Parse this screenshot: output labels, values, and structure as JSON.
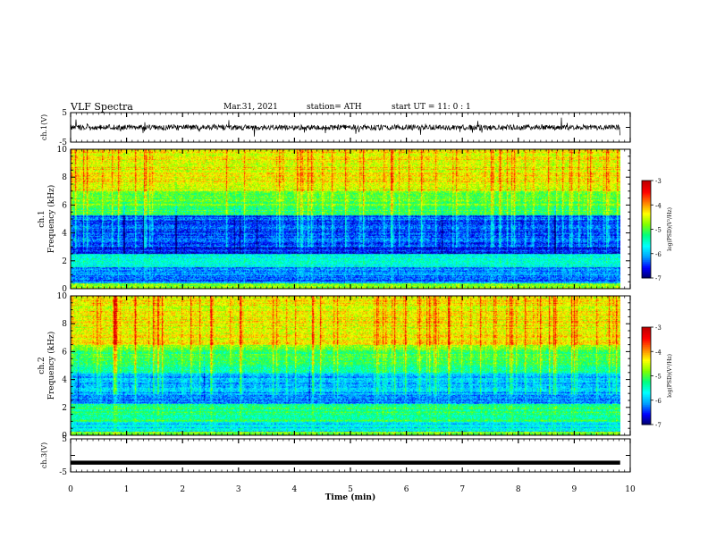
{
  "header": {
    "title": "VLF Spectra",
    "date": "Mar.31, 2021",
    "station": "station= ATH",
    "start": "start  UT =   11: 0  : 1"
  },
  "chart_data": {
    "type": "heatmap",
    "title": "VLF Spectra",
    "time_axis": {
      "label": "Time (min)",
      "range": [
        0,
        10
      ],
      "ticks": [
        "0",
        "1",
        "2",
        "3",
        "4",
        "5",
        "6",
        "7",
        "8",
        "9",
        "10"
      ],
      "data_end": 9.82
    },
    "panels": [
      {
        "id": "ch1-waveform",
        "ylabel": "ch.1(V)",
        "yticks": [
          "5",
          "-5"
        ],
        "ylim": [
          -5,
          5
        ],
        "type": "line",
        "description_values": {
          "baseline": 0,
          "amplitude": 1.3
        }
      },
      {
        "id": "ch1-spectrogram",
        "ylabel": "ch.1\nFrequency (kHz)",
        "ylabel_top": "ch.1",
        "ylabel_main": "Frequency (kHz)",
        "yticks": [
          "0",
          "2",
          "4",
          "6",
          "8",
          "10"
        ],
        "ylim": [
          0,
          10
        ],
        "type": "heatmap",
        "colorbar": {
          "label": "log(PSD)(V²/Hz)",
          "ticks": [
            "-3",
            "-4",
            "-5",
            "-6",
            "-7"
          ],
          "range": [
            -7,
            -3
          ]
        }
      },
      {
        "id": "ch2-spectrogram",
        "ylabel_top": "ch.2",
        "ylabel_main": "Frequency (kHz)",
        "yticks": [
          "0",
          "2",
          "4",
          "6",
          "8",
          "10"
        ],
        "ylim": [
          0,
          10
        ],
        "type": "heatmap",
        "colorbar": {
          "label": "log(PSD)(V²/Hz)",
          "ticks": [
            "-3",
            "-4",
            "-5",
            "-6",
            "-7"
          ],
          "range": [
            -7,
            -3
          ]
        }
      },
      {
        "id": "ch3-waveform",
        "ylabel": "ch.3(V)",
        "yticks": [
          "5",
          "-5"
        ],
        "ylim": [
          -5,
          5
        ],
        "type": "line",
        "description_values": {
          "baseline": -2.2,
          "amplitude": 0.3
        }
      }
    ],
    "colors": {
      "colormap": [
        "#000060",
        "#0000ff",
        "#00a0ff",
        "#00ffff",
        "#00ff80",
        "#80ff00",
        "#ffff00",
        "#ff8000",
        "#ff0000",
        "#c00000"
      ],
      "line": "#000000"
    }
  }
}
